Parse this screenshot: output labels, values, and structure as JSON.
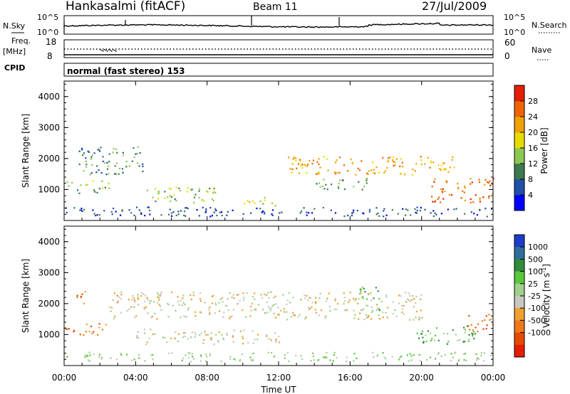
{
  "header": {
    "station": "Hankasalmi (fitACF)",
    "beam": "Beam 11",
    "date": "27/Jul/2009"
  },
  "top_panels": {
    "nsky_label": "N.Sky",
    "nsky_ticks": [
      "10^5",
      "10^0"
    ],
    "nsearch_label": "N.Search",
    "nsearch_ticks": [
      "10^5",
      "10^0"
    ],
    "freq_label": "Freq.",
    "freq_unit": "[MHz]",
    "freq_ticks": [
      "18",
      "8"
    ],
    "nave_label": "Nave",
    "nave_ticks": [
      "60",
      "0"
    ],
    "cpid_label": "CPID",
    "cpid_text": "normal (fast stereo) 153"
  },
  "chart_data": [
    {
      "type": "heatmap",
      "name": "power-panel",
      "ylabel": "Slant Range [km]",
      "xlabel": "",
      "ylim": [
        0,
        4500
      ],
      "yticks": [
        "1000",
        "2000",
        "3000",
        "4000"
      ],
      "colorbar_label": "Power [dB]",
      "colorbar_ticks": [
        "4",
        "8",
        "12",
        "16",
        "20",
        "24",
        "28"
      ],
      "colorbar_colors": [
        "#0000ff",
        "#2050a8",
        "#3c7850",
        "#8cc850",
        "#e6dc00",
        "#f0a000",
        "#f06400",
        "#e61e00"
      ],
      "scatter_bands": [
        {
          "t0": 0.0,
          "t1": 2.5,
          "r0": 900,
          "r1": 1300,
          "level": 3
        },
        {
          "t0": 0.8,
          "t1": 4.5,
          "r0": 1500,
          "r1": 2400,
          "level": 2
        },
        {
          "t0": 4.0,
          "t1": 8.5,
          "r0": 600,
          "r1": 1100,
          "level": 3
        },
        {
          "t0": 10.0,
          "t1": 12.0,
          "r0": 500,
          "r1": 800,
          "level": 4
        },
        {
          "t0": 12.5,
          "t1": 22.0,
          "r0": 1500,
          "r1": 2100,
          "level": 5
        },
        {
          "t0": 14.0,
          "t1": 17.0,
          "r0": 1000,
          "r1": 1400,
          "level": 2
        },
        {
          "t0": 20.5,
          "t1": 24.0,
          "r0": 600,
          "r1": 1400,
          "level": 6
        },
        {
          "t0": 0.0,
          "t1": 24.0,
          "r0": 150,
          "r1": 450,
          "level": 1
        }
      ]
    },
    {
      "type": "heatmap",
      "name": "velocity-panel",
      "ylabel": "Slant Range [km]",
      "xlabel": "Time UT",
      "ylim": [
        0,
        4500
      ],
      "yticks": [
        "1000",
        "2000",
        "3000",
        "4000"
      ],
      "xticks": [
        "00:00",
        "04:00",
        "08:00",
        "12:00",
        "16:00",
        "20:00",
        "00:00"
      ],
      "colorbar_label": "Velocity [m s^-1]",
      "colorbar_ticks": [
        "1000",
        "500",
        "100",
        "25",
        "-25",
        "-100",
        "-500",
        "-1000"
      ],
      "colorbar_colors": [
        "#1e3cc8",
        "#2f6e9a",
        "#2f8c3a",
        "#5ac83c",
        "#a0d08c",
        "#c8c8c0",
        "#f0a030",
        "#f07818",
        "#e64a00",
        "#e61e00"
      ],
      "scatter_bands": [
        {
          "t0": 0.0,
          "t1": 2.5,
          "r0": 1000,
          "r1": 1400,
          "level": 7
        },
        {
          "t0": 0.5,
          "t1": 1.2,
          "r0": 2000,
          "r1": 2500,
          "level": 7
        },
        {
          "t0": 2.5,
          "t1": 20.0,
          "r0": 1500,
          "r1": 2400,
          "level": 5
        },
        {
          "t0": 4.0,
          "t1": 12.0,
          "r0": 700,
          "r1": 1200,
          "level": 5
        },
        {
          "t0": 16.5,
          "t1": 17.7,
          "r0": 1800,
          "r1": 2600,
          "level": 3
        },
        {
          "t0": 19.5,
          "t1": 23.0,
          "r0": 700,
          "r1": 1300,
          "level": 3
        },
        {
          "t0": 22.5,
          "t1": 24.0,
          "r0": 1100,
          "r1": 1700,
          "level": 7
        },
        {
          "t0": 0.0,
          "t1": 24.0,
          "r0": 150,
          "r1": 450,
          "level": 4
        }
      ]
    }
  ]
}
